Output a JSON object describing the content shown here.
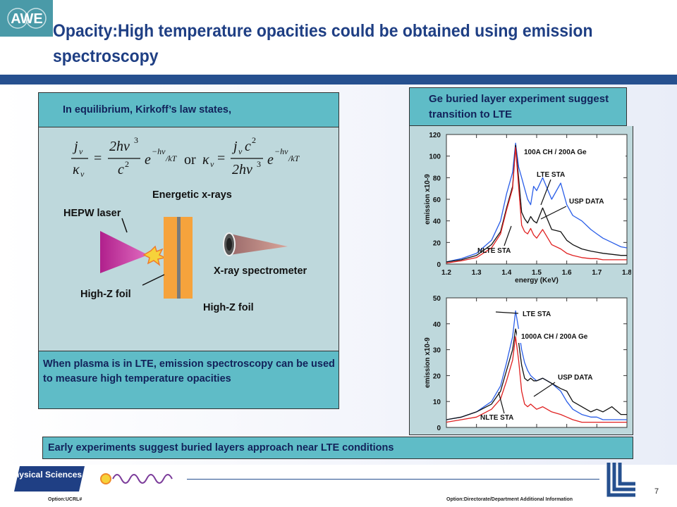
{
  "slide": {
    "title": "Opacity:High temperature opacities could be obtained using emission spectroscopy",
    "logo_text": "AWE",
    "page_number": "7",
    "footer_left": "Option:UCRL#",
    "footer_right": "Option:Directorate/Department  Additional Information",
    "physical_sciences_logo": "Physical Sciences"
  },
  "left_panel": {
    "header": "In equilibrium, Kirkoff’s law states,",
    "label_energetic_xrays": "Energetic x-rays",
    "label_hepw_laser": "HEPW laser",
    "label_xray_spectrometer": "X-ray spectrometer",
    "label_highz_foil_1": "High-Z foil",
    "label_highz_foil_2": "High-Z foil",
    "footer": "When plasma is in LTE, emission spectroscopy can be used to measure high temperature opacities"
  },
  "right_panel": {
    "header": "Ge buried layer experiment suggest transition to LTE"
  },
  "bottom_bar": "Early experiments suggest buried layers approach near LTE conditions",
  "colors": {
    "title": "#1f3f84",
    "panel_bg": "#bed8dc",
    "panel_header": "#5fbcc7",
    "series_lte": "#2a5ee8",
    "series_usp": "#111111",
    "series_nlte": "#e02020"
  },
  "chart_data": [
    {
      "type": "line",
      "xlabel": "energy (KeV)",
      "ylabel": "emission   x10-9",
      "xlim": [
        1.2,
        1.8
      ],
      "ylim": [
        0,
        120
      ],
      "xticks": [
        "1.2",
        "1.3",
        "1.4",
        "1.5",
        "1.6",
        "1.7",
        "1.8"
      ],
      "yticks": [
        "0",
        "20",
        "40",
        "60",
        "80",
        "100",
        "120"
      ],
      "legend_box": "100A CH / 200A Ge",
      "annotations": [
        "LTE STA",
        "USP DATA",
        "NLTE STA"
      ],
      "x": [
        1.2,
        1.25,
        1.3,
        1.35,
        1.38,
        1.4,
        1.42,
        1.43,
        1.44,
        1.45,
        1.46,
        1.47,
        1.48,
        1.49,
        1.5,
        1.52,
        1.55,
        1.58,
        1.6,
        1.62,
        1.65,
        1.68,
        1.7,
        1.72,
        1.75,
        1.78,
        1.8
      ],
      "series": [
        {
          "name": "LTE STA",
          "values": [
            2,
            5,
            10,
            22,
            40,
            65,
            85,
            112,
            90,
            80,
            70,
            60,
            55,
            72,
            68,
            80,
            60,
            75,
            55,
            45,
            40,
            32,
            28,
            24,
            20,
            16,
            15
          ]
        },
        {
          "name": "USP DATA",
          "values": [
            2,
            4,
            8,
            18,
            30,
            52,
            72,
            110,
            80,
            48,
            42,
            38,
            44,
            40,
            38,
            52,
            32,
            30,
            22,
            18,
            14,
            12,
            11,
            10,
            9,
            8,
            8
          ]
        },
        {
          "name": "NLTE STA",
          "values": [
            1,
            3,
            6,
            15,
            28,
            50,
            70,
            108,
            72,
            36,
            30,
            28,
            33,
            27,
            24,
            32,
            18,
            14,
            10,
            8,
            6,
            5,
            5,
            4,
            4,
            4,
            4
          ]
        }
      ]
    },
    {
      "type": "line",
      "ylabel": "emission   x10-9",
      "xlim": [
        1.2,
        1.8
      ],
      "ylim": [
        0,
        50
      ],
      "yticks": [
        "0",
        "10",
        "20",
        "30",
        "40",
        "50"
      ],
      "legend_box": "1000A CH / 200A Ge",
      "annotations": [
        "LTE STA",
        "USP DATA",
        "NLTE STA"
      ],
      "x": [
        1.2,
        1.25,
        1.3,
        1.35,
        1.38,
        1.4,
        1.42,
        1.43,
        1.44,
        1.45,
        1.46,
        1.47,
        1.48,
        1.49,
        1.5,
        1.52,
        1.55,
        1.58,
        1.6,
        1.62,
        1.65,
        1.68,
        1.7,
        1.72,
        1.75,
        1.78,
        1.8
      ],
      "series": [
        {
          "name": "LTE STA",
          "values": [
            3,
            4,
            6,
            10,
            16,
            25,
            35,
            45,
            38,
            30,
            25,
            22,
            20,
            19,
            18,
            19,
            17,
            14,
            10,
            7,
            5,
            4,
            4,
            3,
            3,
            3,
            3
          ]
        },
        {
          "name": "USP DATA",
          "values": [
            3,
            4,
            6,
            9,
            14,
            22,
            30,
            38,
            33,
            24,
            19,
            18,
            19,
            18,
            18,
            19,
            17,
            15,
            14,
            10,
            8,
            6,
            7,
            6,
            8,
            5,
            5
          ]
        },
        {
          "name": "NLTE STA",
          "values": [
            2,
            3,
            4,
            7,
            11,
            18,
            26,
            35,
            26,
            14,
            9,
            8,
            9,
            8,
            7,
            8,
            6,
            5,
            4,
            3,
            2,
            2,
            2,
            2,
            2,
            2,
            2
          ]
        }
      ]
    }
  ]
}
